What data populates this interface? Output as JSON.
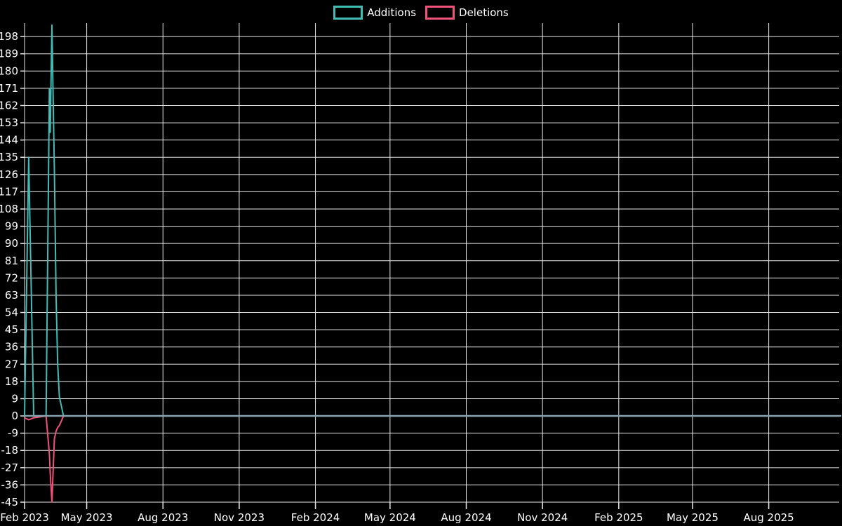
{
  "legend": {
    "items": [
      {
        "label": "Additions",
        "color": "#41bdb6"
      },
      {
        "label": "Deletions",
        "color": "#f0527a"
      }
    ]
  },
  "chart_data": {
    "type": "line",
    "title": "",
    "x": [
      "2023-02-15",
      "2023-02-20",
      "2023-02-26",
      "2023-03-13",
      "2023-03-17",
      "2023-03-18",
      "2023-03-20",
      "2023-03-23",
      "2023-03-25",
      "2023-03-27",
      "2023-03-29",
      "2023-04-03",
      "2025-10-25"
    ],
    "series": [
      {
        "name": "Additions",
        "color": "#41bdb6",
        "values": [
          0,
          135,
          0,
          0,
          171,
          148,
          204,
          128,
          63,
          27,
          10,
          0,
          0
        ]
      },
      {
        "name": "Deletions",
        "color": "#f0527a",
        "values": [
          -1,
          -2,
          -1,
          0,
          -20,
          -30,
          -45,
          -12,
          -8,
          -6,
          -5,
          0,
          0
        ]
      }
    ],
    "x_axis": {
      "min": "2023-02-15",
      "max": "2025-10-25",
      "tick_dates": [
        "2023-02-15",
        "2023-05-01",
        "2023-08-01",
        "2023-11-01",
        "2024-02-01",
        "2024-05-01",
        "2024-08-01",
        "2024-11-01",
        "2025-02-01",
        "2025-05-01",
        "2025-08-01"
      ],
      "tick_labels": [
        "Feb 2023",
        "May 2023",
        "Aug 2023",
        "Nov 2023",
        "Feb 2024",
        "May 2024",
        "Aug 2024",
        "Nov 2024",
        "Feb 2025",
        "May 2025",
        "Aug 2025"
      ]
    },
    "y_axis": {
      "min": -45,
      "max": 205,
      "tick_step": 9,
      "tick_min": -45,
      "tick_max": 198,
      "tick_labels": [
        "198",
        "189",
        "180",
        "171",
        "162",
        "153",
        "144",
        "135",
        "126",
        "117",
        "108",
        "99",
        "90",
        "81",
        "72",
        "63",
        "54",
        "45",
        "36",
        "27",
        "18",
        "9",
        "0",
        "-9",
        "-18",
        "-27",
        "-36",
        "-45"
      ]
    },
    "grid": true,
    "legend_position": "top",
    "colors": {
      "background": "#000000",
      "grid": "#e9e9e9",
      "zero_line": "#86a0ac",
      "text": "#ffffff",
      "additions": "#41bdb6",
      "deletions": "#f0527a"
    }
  }
}
